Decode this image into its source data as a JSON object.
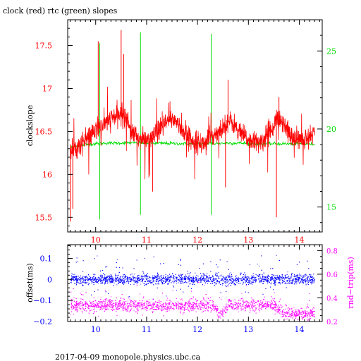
{
  "title": "clock (red) rtc (green) slopes",
  "footer": "2017-04-09  monopole.physics.ubc.ca",
  "chart_data": [
    {
      "type": "line",
      "ylabel": "clockslope",
      "y2label": "",
      "xlim": [
        9.45,
        14.45
      ],
      "ylim": [
        15.33,
        17.8
      ],
      "y2lim": [
        13.4,
        27.0
      ],
      "xticks": [
        "10",
        "11",
        "12",
        "13",
        "14"
      ],
      "yticks": [
        "15.5",
        "16",
        "16.5",
        "17",
        "17.5"
      ],
      "y2ticks": [
        "15",
        "20",
        "25"
      ],
      "series": [
        {
          "color": "#ff0000",
          "axis": "left",
          "x": [
            9.5,
            9.6,
            9.7,
            9.8,
            9.9,
            10.0,
            10.1,
            10.2,
            10.3,
            10.4,
            10.5,
            10.6,
            10.7,
            10.8,
            10.9,
            11.0,
            11.1,
            11.2,
            11.3,
            11.4,
            11.5,
            11.6,
            11.7,
            11.8,
            11.9,
            12.0,
            12.1,
            12.2,
            12.3,
            12.4,
            12.5,
            12.6,
            12.7,
            12.8,
            12.9,
            13.0,
            13.1,
            13.2,
            13.3,
            13.4,
            13.5,
            13.6,
            13.7,
            13.8,
            13.9,
            14.0,
            14.1,
            14.2,
            14.3
          ],
          "y": [
            16.3,
            16.3,
            16.35,
            16.4,
            16.45,
            16.5,
            16.55,
            16.6,
            16.65,
            16.68,
            16.7,
            16.68,
            16.5,
            16.45,
            16.4,
            16.4,
            16.42,
            16.48,
            16.55,
            16.6,
            16.65,
            16.62,
            16.5,
            16.45,
            16.4,
            16.38,
            16.36,
            16.4,
            16.45,
            16.5,
            16.55,
            16.62,
            16.6,
            16.5,
            16.45,
            16.4,
            16.38,
            16.36,
            16.4,
            16.5,
            16.58,
            16.65,
            16.6,
            16.48,
            16.42,
            16.4,
            16.42,
            16.45,
            16.5
          ]
        },
        {
          "color": "#00dd00",
          "axis": "right",
          "x": [
            9.5,
            9.6,
            9.8,
            10.0,
            10.2,
            10.4,
            10.6,
            10.8,
            11.0,
            11.2,
            11.4,
            11.6,
            11.8,
            12.0,
            12.2,
            12.4,
            12.6,
            12.8,
            13.0,
            13.2,
            13.4,
            13.6,
            13.8,
            14.0,
            14.2,
            14.3
          ],
          "y": [
            18.8,
            18.9,
            19.0,
            19.05,
            19.1,
            19.1,
            19.12,
            19.1,
            19.1,
            19.08,
            19.08,
            19.06,
            19.05,
            19.05,
            19.06,
            19.08,
            19.1,
            19.1,
            19.08,
            19.05,
            19.05,
            19.06,
            19.05,
            19.05,
            19.04,
            19.03
          ]
        }
      ]
    },
    {
      "type": "scatter",
      "ylabel": "offset(ms)",
      "y2label": "rnd−trip(ms)",
      "xlim": [
        9.45,
        14.45
      ],
      "ylim": [
        -0.2,
        0.165
      ],
      "y2lim": [
        0.2,
        0.85
      ],
      "xticks": [
        "10",
        "11",
        "12",
        "13",
        "14"
      ],
      "yticks": [
        "−0.2",
        "−0.1",
        "0",
        "0.1"
      ],
      "y2ticks": [
        "0.2",
        "0.4",
        "0.6",
        "0.8"
      ],
      "series": [
        {
          "color": "#0000ff",
          "axis": "left",
          "x": [
            9.5,
            10.0,
            10.5,
            11.0,
            11.5,
            12.0,
            12.5,
            13.0,
            13.5,
            14.0,
            14.3
          ],
          "y": [
            0.002,
            0.002,
            0.002,
            0.002,
            0.002,
            0.002,
            0.002,
            0.002,
            0.002,
            0.002,
            0.002
          ]
        },
        {
          "color": "#ff00ff",
          "axis": "right",
          "x": [
            9.5,
            10.0,
            10.5,
            11.0,
            11.5,
            12.0,
            12.3,
            12.4,
            12.5,
            12.6,
            13.0,
            13.5,
            13.7,
            14.0,
            14.3
          ],
          "y": [
            0.34,
            0.34,
            0.34,
            0.34,
            0.34,
            0.34,
            0.34,
            0.27,
            0.27,
            0.34,
            0.34,
            0.34,
            0.27,
            0.27,
            0.27
          ]
        }
      ]
    }
  ]
}
